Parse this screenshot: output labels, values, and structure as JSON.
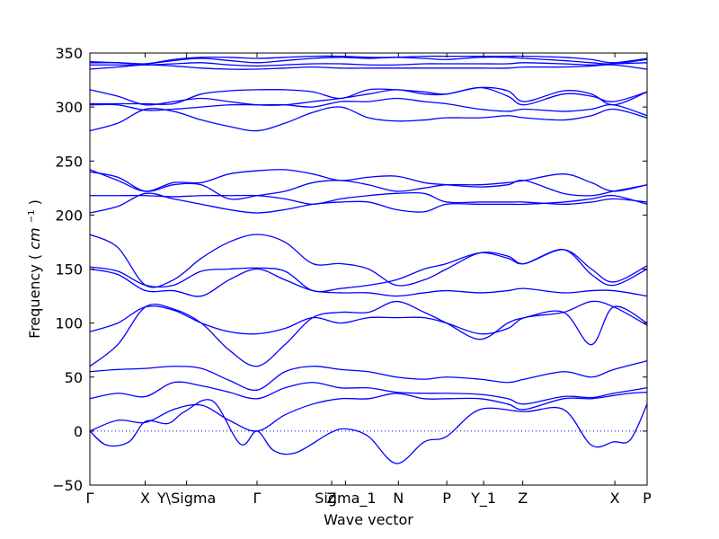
{
  "chart_data": {
    "type": "line",
    "title": "",
    "xlabel": "Wave vector",
    "ylabel": "Frequency",
    "ylabel_unit": "cm",
    "ylabel_unit_power": "−1",
    "ylim": [
      -50,
      350
    ],
    "yticks": [
      -50,
      0,
      50,
      100,
      150,
      200,
      250,
      300,
      350
    ],
    "xlim": [
      0,
      1.0
    ],
    "grid": false,
    "series_color": "#0000ff",
    "zero_line": {
      "y": 0,
      "style": "dotted",
      "color": "#0000ff"
    },
    "high_symmetry_points": [
      {
        "label": "Γ",
        "x": 0.0
      },
      {
        "label": "X",
        "x": 0.0992
      },
      {
        "label": "Y\\Sigma",
        "x": 0.1736
      },
      {
        "label": "Γ",
        "x": 0.3
      },
      {
        "label": "Z",
        "x": 0.4339
      },
      {
        "label": "Sigma_1",
        "x": 0.4587
      },
      {
        "label": "N",
        "x": 0.5537
      },
      {
        "label": "P",
        "x": 0.6405
      },
      {
        "label": "Y_1",
        "x": 0.7066
      },
      {
        "label": "Z",
        "x": 0.7769
      },
      {
        "label": "X",
        "x": 0.9421
      },
      {
        "label": "P",
        "x": 1.0
      }
    ],
    "series": [
      {
        "x": [
          0,
          0.03,
          0.07,
          0.1,
          0.14,
          0.17,
          0.22,
          0.27,
          0.3,
          0.33,
          0.37,
          0.43,
          0.46,
          0.5,
          0.55,
          0.6,
          0.64,
          0.7,
          0.78,
          0.85,
          0.9,
          0.94,
          0.97,
          1.0
        ],
        "values": [
          0,
          -13,
          -10,
          9,
          7,
          18,
          28,
          -12,
          0,
          -18,
          -20,
          -2,
          2,
          -5,
          -30,
          -10,
          -5,
          20,
          18,
          20,
          -13,
          -10,
          -8,
          25
        ]
      },
      {
        "x": [
          0,
          0.05,
          0.1,
          0.15,
          0.2,
          0.25,
          0.3,
          0.35,
          0.4,
          0.45,
          0.5,
          0.55,
          0.6,
          0.64,
          0.7,
          0.75,
          0.78,
          0.85,
          0.9,
          0.94,
          0.97,
          1.0
        ],
        "values": [
          0,
          10,
          8,
          20,
          24,
          10,
          0,
          15,
          25,
          30,
          30,
          35,
          30,
          30,
          30,
          25,
          20,
          30,
          30,
          33,
          35,
          36
        ]
      },
      {
        "x": [
          0,
          0.05,
          0.1,
          0.15,
          0.2,
          0.25,
          0.3,
          0.35,
          0.4,
          0.45,
          0.5,
          0.55,
          0.6,
          0.64,
          0.7,
          0.75,
          0.78,
          0.85,
          0.9,
          0.94,
          1.0
        ],
        "values": [
          30,
          35,
          32,
          45,
          42,
          36,
          30,
          40,
          45,
          40,
          40,
          36,
          35,
          35,
          34,
          30,
          25,
          32,
          31,
          35,
          40
        ]
      },
      {
        "x": [
          0,
          0.05,
          0.1,
          0.15,
          0.2,
          0.25,
          0.3,
          0.35,
          0.4,
          0.45,
          0.5,
          0.55,
          0.6,
          0.64,
          0.7,
          0.75,
          0.78,
          0.85,
          0.9,
          0.94,
          1.0
        ],
        "values": [
          55,
          57,
          58,
          60,
          58,
          47,
          38,
          55,
          60,
          57,
          55,
          50,
          48,
          50,
          48,
          45,
          48,
          55,
          50,
          57,
          65
        ]
      },
      {
        "x": [
          0,
          0.05,
          0.1,
          0.15,
          0.2,
          0.25,
          0.3,
          0.35,
          0.4,
          0.45,
          0.5,
          0.55,
          0.6,
          0.64,
          0.7,
          0.75,
          0.78,
          0.85,
          0.9,
          0.94,
          1.0
        ],
        "values": [
          60,
          80,
          115,
          113,
          100,
          75,
          60,
          80,
          105,
          110,
          110,
          120,
          110,
          100,
          85,
          100,
          105,
          110,
          80,
          115,
          100
        ]
      },
      {
        "x": [
          0,
          0.05,
          0.1,
          0.15,
          0.2,
          0.25,
          0.3,
          0.35,
          0.4,
          0.45,
          0.5,
          0.55,
          0.6,
          0.64,
          0.7,
          0.75,
          0.78,
          0.85,
          0.9,
          0.94,
          1.0
        ],
        "values": [
          92,
          100,
          115,
          112,
          100,
          92,
          90,
          95,
          105,
          100,
          105,
          105,
          105,
          100,
          90,
          95,
          105,
          110,
          120,
          115,
          98
        ]
      },
      {
        "x": [
          0,
          0.05,
          0.1,
          0.15,
          0.2,
          0.25,
          0.3,
          0.35,
          0.4,
          0.45,
          0.5,
          0.55,
          0.6,
          0.64,
          0.7,
          0.75,
          0.78,
          0.85,
          0.9,
          0.94,
          1.0
        ],
        "values": [
          150,
          145,
          130,
          130,
          125,
          140,
          150,
          140,
          130,
          128,
          128,
          125,
          128,
          130,
          128,
          130,
          132,
          128,
          130,
          130,
          125
        ]
      },
      {
        "x": [
          0,
          0.05,
          0.1,
          0.15,
          0.2,
          0.25,
          0.3,
          0.35,
          0.4,
          0.45,
          0.5,
          0.55,
          0.6,
          0.64,
          0.7,
          0.75,
          0.78,
          0.85,
          0.9,
          0.94,
          1.0
        ],
        "values": [
          152,
          148,
          135,
          135,
          148,
          150,
          151,
          148,
          130,
          132,
          135,
          140,
          150,
          155,
          165,
          160,
          155,
          168,
          145,
          135,
          150
        ]
      },
      {
        "x": [
          0,
          0.05,
          0.1,
          0.15,
          0.2,
          0.25,
          0.3,
          0.35,
          0.4,
          0.45,
          0.5,
          0.55,
          0.6,
          0.64,
          0.7,
          0.75,
          0.78,
          0.85,
          0.9,
          0.94,
          1.0
        ],
        "values": [
          182,
          170,
          135,
          140,
          160,
          175,
          182,
          175,
          155,
          155,
          150,
          135,
          140,
          150,
          165,
          162,
          155,
          168,
          150,
          138,
          153
        ]
      },
      {
        "x": [
          0,
          0.05,
          0.1,
          0.15,
          0.2,
          0.25,
          0.3,
          0.35,
          0.4,
          0.45,
          0.5,
          0.55,
          0.6,
          0.64,
          0.7,
          0.75,
          0.78,
          0.85,
          0.9,
          0.94,
          1.0
        ],
        "values": [
          202,
          208,
          220,
          215,
          210,
          205,
          202,
          205,
          210,
          212,
          212,
          205,
          203,
          210,
          210,
          210,
          210,
          212,
          215,
          218,
          210
        ]
      },
      {
        "x": [
          0,
          0.05,
          0.1,
          0.15,
          0.2,
          0.25,
          0.3,
          0.35,
          0.4,
          0.45,
          0.5,
          0.55,
          0.6,
          0.64,
          0.7,
          0.75,
          0.78,
          0.85,
          0.9,
          0.94,
          1.0
        ],
        "values": [
          218,
          218,
          218,
          217,
          218,
          218,
          218,
          215,
          210,
          215,
          218,
          220,
          220,
          212,
          212,
          212,
          212,
          210,
          212,
          215,
          212
        ]
      },
      {
        "x": [
          0,
          0.05,
          0.1,
          0.15,
          0.2,
          0.25,
          0.3,
          0.35,
          0.4,
          0.45,
          0.5,
          0.55,
          0.6,
          0.64,
          0.7,
          0.75,
          0.78,
          0.85,
          0.9,
          0.94,
          1.0
        ],
        "values": [
          240,
          235,
          222,
          228,
          228,
          215,
          218,
          222,
          230,
          232,
          228,
          222,
          225,
          228,
          228,
          230,
          232,
          238,
          230,
          222,
          228
        ]
      },
      {
        "x": [
          0,
          0.05,
          0.1,
          0.15,
          0.2,
          0.25,
          0.3,
          0.35,
          0.4,
          0.45,
          0.5,
          0.55,
          0.6,
          0.64,
          0.7,
          0.75,
          0.78,
          0.85,
          0.9,
          0.94,
          1.0
        ],
        "values": [
          242,
          232,
          222,
          230,
          230,
          238,
          241,
          242,
          238,
          232,
          235,
          236,
          230,
          228,
          226,
          228,
          232,
          220,
          218,
          222,
          228
        ]
      },
      {
        "x": [
          0,
          0.05,
          0.1,
          0.15,
          0.2,
          0.25,
          0.3,
          0.35,
          0.4,
          0.45,
          0.5,
          0.55,
          0.6,
          0.64,
          0.7,
          0.75,
          0.78,
          0.85,
          0.9,
          0.94,
          1.0
        ],
        "values": [
          278,
          285,
          298,
          296,
          288,
          282,
          278,
          285,
          295,
          300,
          290,
          287,
          288,
          290,
          290,
          292,
          290,
          288,
          292,
          298,
          290
        ]
      },
      {
        "x": [
          0,
          0.05,
          0.1,
          0.15,
          0.2,
          0.25,
          0.3,
          0.35,
          0.4,
          0.45,
          0.5,
          0.55,
          0.6,
          0.64,
          0.7,
          0.75,
          0.78,
          0.85,
          0.9,
          0.94,
          1.0
        ],
        "values": [
          302,
          302,
          297,
          298,
          300,
          302,
          302,
          302,
          300,
          305,
          305,
          308,
          305,
          303,
          298,
          296,
          298,
          296,
          298,
          302,
          292
        ]
      },
      {
        "x": [
          0,
          0.05,
          0.1,
          0.15,
          0.2,
          0.25,
          0.3,
          0.35,
          0.4,
          0.45,
          0.5,
          0.55,
          0.6,
          0.64,
          0.7,
          0.75,
          0.78,
          0.85,
          0.9,
          0.94,
          1.0
        ],
        "values": [
          316,
          310,
          302,
          305,
          308,
          305,
          302,
          302,
          305,
          308,
          312,
          316,
          312,
          312,
          318,
          315,
          305,
          315,
          312,
          302,
          314
        ]
      },
      {
        "x": [
          0,
          0.05,
          0.1,
          0.15,
          0.2,
          0.25,
          0.3,
          0.35,
          0.4,
          0.45,
          0.5,
          0.55,
          0.6,
          0.64,
          0.7,
          0.75,
          0.78,
          0.85,
          0.9,
          0.94,
          1.0
        ],
        "values": [
          303,
          303,
          303,
          303,
          312,
          315,
          316,
          316,
          314,
          308,
          316,
          316,
          314,
          312,
          318,
          310,
          302,
          312,
          310,
          305,
          314
        ]
      },
      {
        "x": [
          0,
          0.05,
          0.1,
          0.15,
          0.2,
          0.25,
          0.3,
          0.35,
          0.4,
          0.45,
          0.5,
          0.55,
          0.6,
          0.64,
          0.7,
          0.75,
          0.78,
          0.85,
          0.9,
          0.94,
          1.0
        ],
        "values": [
          335,
          337,
          339,
          338,
          336,
          335,
          335,
          336,
          337,
          336,
          336,
          336,
          336,
          336,
          336,
          336,
          337,
          337,
          338,
          339,
          335
        ]
      },
      {
        "x": [
          0,
          0.05,
          0.1,
          0.15,
          0.2,
          0.25,
          0.3,
          0.35,
          0.4,
          0.45,
          0.5,
          0.55,
          0.6,
          0.64,
          0.7,
          0.75,
          0.78,
          0.85,
          0.9,
          0.94,
          1.0
        ],
        "values": [
          339,
          339,
          339,
          340,
          341,
          339,
          338,
          339,
          340,
          340,
          339,
          339,
          340,
          340,
          340,
          340,
          341,
          340,
          339,
          340,
          341
        ]
      },
      {
        "x": [
          0,
          0.05,
          0.1,
          0.15,
          0.2,
          0.25,
          0.3,
          0.35,
          0.4,
          0.45,
          0.5,
          0.55,
          0.6,
          0.64,
          0.7,
          0.75,
          0.78,
          0.85,
          0.9,
          0.94,
          1.0
        ],
        "values": [
          341,
          341,
          340,
          343,
          345,
          343,
          341,
          343,
          345,
          346,
          345,
          346,
          345,
          344,
          346,
          346,
          345,
          343,
          341,
          340,
          344
        ]
      },
      {
        "x": [
          0,
          0.05,
          0.1,
          0.15,
          0.2,
          0.25,
          0.3,
          0.35,
          0.4,
          0.45,
          0.5,
          0.55,
          0.6,
          0.64,
          0.7,
          0.75,
          0.78,
          0.85,
          0.9,
          0.94,
          1.0
        ],
        "values": [
          342,
          341,
          340,
          344,
          346,
          346,
          345,
          346,
          347,
          347,
          346,
          346,
          347,
          347,
          347,
          347,
          347,
          346,
          344,
          341,
          345
        ]
      }
    ]
  }
}
